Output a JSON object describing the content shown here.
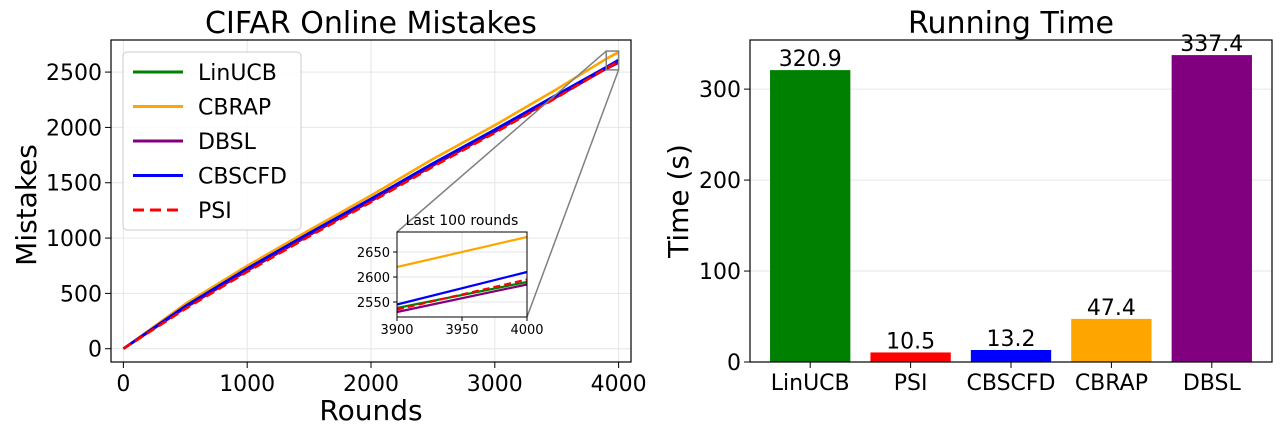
{
  "chart_data": [
    {
      "type": "line",
      "title": "CIFAR Online Mistakes",
      "xlabel": "Rounds",
      "ylabel": "Mistakes",
      "xlim": [
        -100,
        4100
      ],
      "ylim": [
        -120,
        2790
      ],
      "xticks": [
        0,
        1000,
        2000,
        3000,
        4000
      ],
      "yticks": [
        0,
        500,
        1000,
        1500,
        2000,
        2500
      ],
      "grid": true,
      "legend_position": "top-left",
      "series": [
        {
          "name": "LinUCB",
          "color": "#008000",
          "style": "solid",
          "x": [
            0,
            500,
            1000,
            1500,
            2000,
            2500,
            3000,
            3500,
            3900,
            4000
          ],
          "y": [
            0,
            375,
            715,
            1035,
            1345,
            1665,
            1970,
            2285,
            2538,
            2590
          ]
        },
        {
          "name": "CBRAP",
          "color": "#FFA500",
          "style": "solid",
          "x": [
            0,
            500,
            1000,
            1500,
            2000,
            2500,
            3000,
            3500,
            3900,
            4000
          ],
          "y": [
            0,
            405,
            750,
            1070,
            1385,
            1715,
            2020,
            2345,
            2620,
            2680
          ]
        },
        {
          "name": "DBSL",
          "color": "#800080",
          "style": "solid",
          "x": [
            0,
            500,
            1000,
            1500,
            2000,
            2500,
            3000,
            3500,
            3900,
            4000
          ],
          "y": [
            0,
            370,
            705,
            1025,
            1335,
            1655,
            1960,
            2275,
            2530,
            2585
          ]
        },
        {
          "name": "CBSCFD",
          "color": "#0000FF",
          "style": "solid",
          "x": [
            0,
            500,
            1000,
            1500,
            2000,
            2500,
            3000,
            3500,
            3900,
            4000
          ],
          "y": [
            0,
            385,
            725,
            1045,
            1355,
            1675,
            1980,
            2295,
            2545,
            2610
          ]
        },
        {
          "name": "PSI",
          "color": "#FF0000",
          "style": "dashed",
          "x": [
            0,
            500,
            1000,
            1500,
            2000,
            2500,
            3000,
            3500,
            3900,
            4000
          ],
          "y": [
            0,
            360,
            695,
            1015,
            1325,
            1645,
            1950,
            2270,
            2535,
            2595
          ]
        }
      ],
      "inset": {
        "title": "Last 100 rounds",
        "xlim": [
          3900,
          4000
        ],
        "ylim": [
          2520,
          2690
        ],
        "xticks": [
          3900,
          3950,
          4000
        ],
        "yticks": [
          2550,
          2600,
          2650
        ]
      }
    },
    {
      "type": "bar",
      "title": "Running Time",
      "xlabel": "",
      "ylabel": "Time (s)",
      "ylim": [
        0,
        354
      ],
      "yticks": [
        0,
        100,
        200,
        300
      ],
      "grid": true,
      "categories": [
        "LinUCB",
        "PSI",
        "CBSCFD",
        "CBRAP",
        "DBSL"
      ],
      "values": [
        320.9,
        10.5,
        13.2,
        47.4,
        337.4
      ],
      "value_labels": [
        "320.9",
        "10.5",
        "13.2",
        "47.4",
        "337.4"
      ],
      "colors": [
        "#008000",
        "#FF0000",
        "#0000FF",
        "#FFA500",
        "#800080"
      ]
    }
  ]
}
